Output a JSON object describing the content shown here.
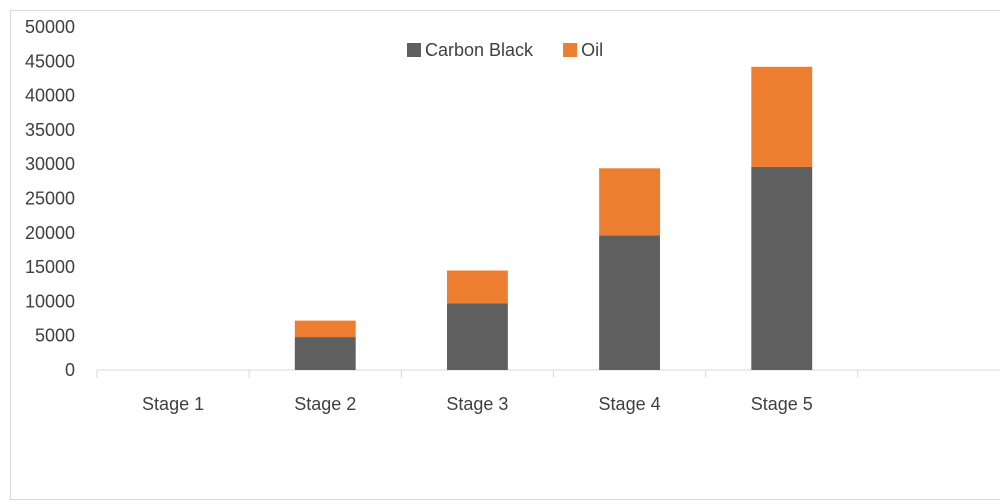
{
  "chart_data": {
    "type": "bar",
    "stacked": true,
    "categories": [
      "Stage 1",
      "Stage 2",
      "Stage 3",
      "Stage 4",
      "Stage 5",
      ""
    ],
    "series": [
      {
        "name": "Carbon Black",
        "color": "#5f5f5f",
        "values": [
          0,
          4800,
          9700,
          19600,
          29600,
          0
        ]
      },
      {
        "name": "Oil",
        "color": "#ed7d31",
        "values": [
          0,
          2400,
          4800,
          9800,
          14600,
          0
        ]
      }
    ],
    "ylim": [
      0,
      50000
    ],
    "yticks": [
      0,
      5000,
      10000,
      15000,
      20000,
      25000,
      30000,
      35000,
      40000,
      45000,
      50000
    ],
    "grid": false,
    "legend_position": "top-center",
    "title": "",
    "xlabel": "",
    "ylabel": ""
  }
}
